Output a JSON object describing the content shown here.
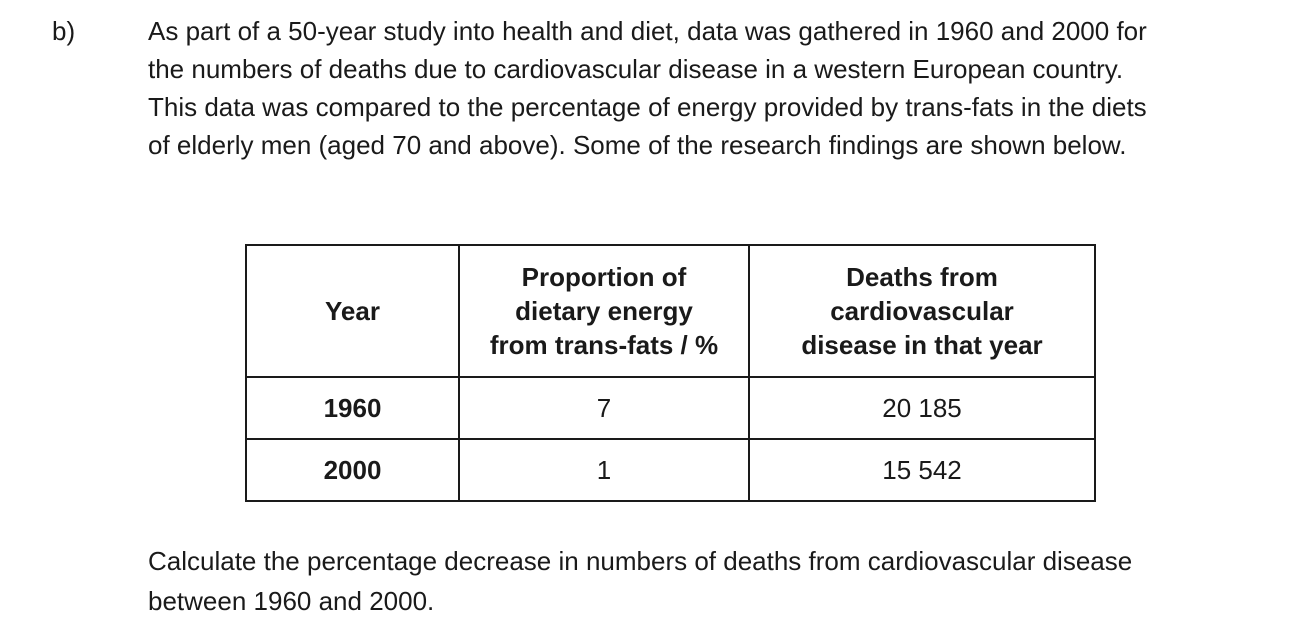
{
  "part_label": "b)",
  "intro_lines": [
    "As part of a 50-year study into health and diet, data was gathered in 1960 and 2000 for",
    "the numbers of deaths due to cardiovascular disease in a western European country.",
    "This data was compared to the percentage of energy provided by trans-fats in the diets",
    "of elderly men (aged 70 and above). Some of the research findings are shown below."
  ],
  "table": {
    "headers": [
      {
        "lines": [
          "Year"
        ]
      },
      {
        "lines": [
          "Proportion of",
          "dietary energy",
          "from trans-fats / %"
        ]
      },
      {
        "lines": [
          "Deaths from",
          "cardiovascular",
          "disease in that year"
        ]
      }
    ],
    "rows": [
      {
        "year": "1960",
        "trans_fat_percent": "7",
        "deaths": "20 185"
      },
      {
        "year": "2000",
        "trans_fat_percent": "1",
        "deaths": "15 542"
      }
    ]
  },
  "question_lines": [
    "Calculate the percentage decrease in numbers of deaths from cardiovascular disease",
    "between 1960 and 2000."
  ]
}
